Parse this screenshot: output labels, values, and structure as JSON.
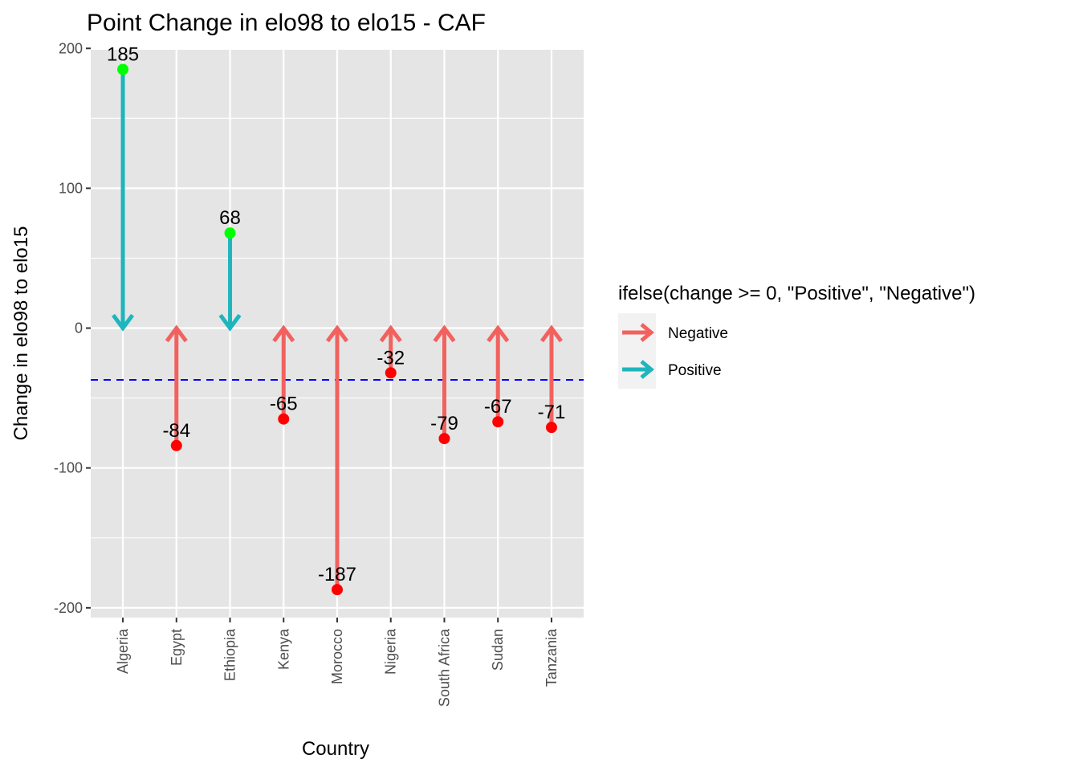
{
  "chart_data": {
    "type": "arrow-dot",
    "title": "Point Change in elo98 to elo15 - CAF",
    "xlabel": "Country",
    "ylabel": "Change in elo98 to elo15",
    "ylim": [
      -207,
      199
    ],
    "yticks": [
      -200,
      -100,
      0,
      100,
      200
    ],
    "ytick_labels": [
      "-200",
      "-100",
      "0",
      "100",
      "200"
    ],
    "grid": true,
    "categories": [
      "Algeria",
      "Egypt",
      "Ethiopia",
      "Kenya",
      "Morocco",
      "Nigeria",
      "South Africa",
      "Sudan",
      "Tanzania"
    ],
    "values": [
      185,
      -84,
      68,
      -65,
      -187,
      -32,
      -79,
      -67,
      -71
    ],
    "data_labels": [
      "185",
      "-84",
      "68",
      "-65",
      "-187",
      "-32",
      "-79",
      "-67",
      "-71"
    ],
    "reference_line": {
      "value": -37,
      "style": "dashed",
      "color": "#0000ff"
    },
    "legend": {
      "title": "ifelse(change >= 0, \"Positive\", \"Negative\")",
      "placement": "right",
      "entries": [
        {
          "name": "Negative",
          "color": "#F8766D"
        },
        {
          "name": "Positive",
          "color": "#00BFC4"
        }
      ]
    },
    "colors": {
      "positive_arrow": "#1FB5BC",
      "negative_arrow": "#F1625F",
      "positive_point": "#00FF00",
      "negative_point": "#FF0000",
      "panel": "#E5E5E5",
      "grid": "#FFFFFF"
    }
  }
}
